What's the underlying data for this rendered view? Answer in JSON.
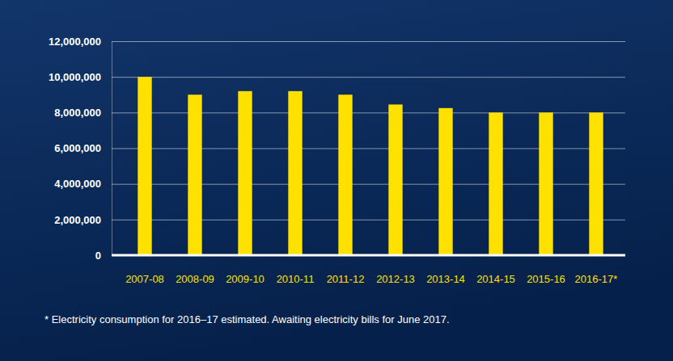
{
  "chart_data": {
    "type": "bar",
    "categories": [
      "2007-08",
      "2008-09",
      "2009-10",
      "2010-11",
      "2011-12",
      "2012-13",
      "2013-14",
      "2014-15",
      "2015-16",
      "2016-17*"
    ],
    "values": [
      10000000,
      9000000,
      9200000,
      9200000,
      9000000,
      8450000,
      8250000,
      8000000,
      8000000,
      8000000
    ],
    "color": "#ffe100",
    "ylim": [
      0,
      12000000
    ],
    "yticks": [
      {
        "value": 0,
        "label": "0"
      },
      {
        "value": 2000000,
        "label": "2,000,000"
      },
      {
        "value": 4000000,
        "label": "4,000,000"
      },
      {
        "value": 6000000,
        "label": "6,000,000"
      },
      {
        "value": 8000000,
        "label": "8,000,000"
      },
      {
        "value": 10000000,
        "label": "10,000,000"
      },
      {
        "value": 12000000,
        "label": "12,000,000"
      }
    ],
    "grid": true,
    "annotations": [
      "* Electricity consumption for 2016–17 estimated. Awaiting electricity bills for June 2017."
    ]
  }
}
